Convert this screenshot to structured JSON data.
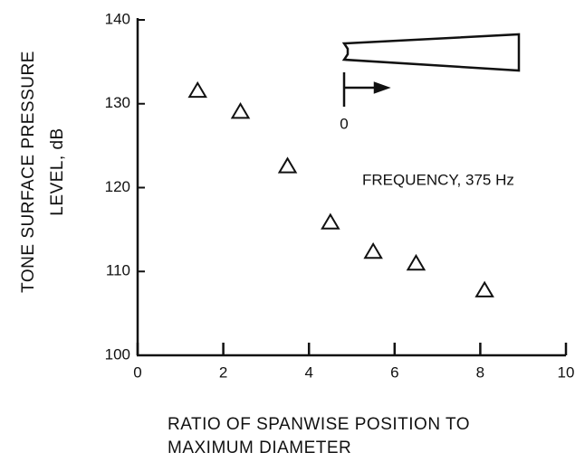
{
  "chart_data": {
    "type": "scatter",
    "ylabel": [
      "TONE SURFACE PRESSURE",
      "LEVEL, dB"
    ],
    "xlabel": [
      "RATIO OF SPANWISE POSITION TO",
      "MAXIMUM DIAMETER"
    ],
    "annotation": "FREQUENCY, 375 Hz",
    "inset_label": "0",
    "marker": "triangle",
    "color": "#111111",
    "x": [
      1.4,
      2.4,
      3.5,
      4.5,
      5.5,
      6.5,
      8.1
    ],
    "values": [
      131.5,
      129.0,
      122.5,
      115.8,
      112.3,
      110.9,
      107.7
    ],
    "xlim": [
      0,
      10
    ],
    "xticks": [
      0,
      2,
      4,
      6,
      8,
      10
    ],
    "ylim": [
      100,
      140
    ],
    "yticks": [
      100,
      110,
      120,
      130,
      140
    ]
  }
}
